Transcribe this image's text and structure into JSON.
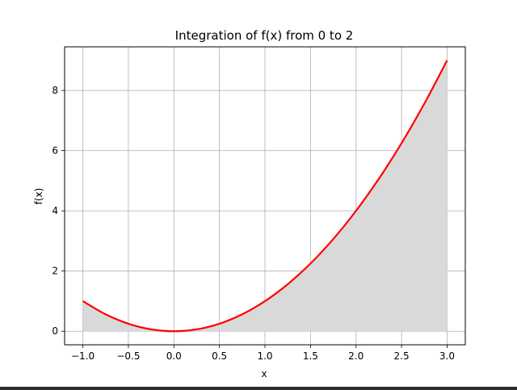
{
  "chart_data": {
    "type": "line",
    "title": "Integration of f(x) from 0 to 2",
    "xlabel": "x",
    "ylabel": "f(x)",
    "xlim": [
      -1.2,
      3.2
    ],
    "ylim": [
      -0.45,
      9.45
    ],
    "grid": true,
    "x_ticks": [
      -1.0,
      -0.5,
      0.0,
      0.5,
      1.0,
      1.5,
      2.0,
      2.5,
      3.0
    ],
    "x_tick_labels": [
      "−1.0",
      "−0.5",
      "0.0",
      "0.5",
      "1.0",
      "1.5",
      "2.0",
      "2.5",
      "3.0"
    ],
    "y_ticks": [
      0,
      2,
      4,
      6,
      8
    ],
    "y_tick_labels": [
      "0",
      "2",
      "4",
      "6",
      "8"
    ],
    "series": [
      {
        "color": "#ff0000",
        "x": [
          -1.0,
          -0.75,
          -0.5,
          -0.25,
          0.0,
          0.25,
          0.5,
          0.75,
          1.0,
          1.25,
          1.5,
          1.75,
          2.0,
          2.25,
          2.5,
          2.75,
          3.0
        ],
        "y": [
          1.0,
          0.5625,
          0.25,
          0.0625,
          0.0,
          0.0625,
          0.25,
          0.5625,
          1.0,
          1.5625,
          2.25,
          3.0625,
          4.0,
          5.0625,
          6.25,
          7.5625,
          9.0
        ]
      }
    ],
    "fill_under": {
      "color": "#d9d9d9",
      "x_range": [
        -1.0,
        3.0
      ]
    }
  }
}
